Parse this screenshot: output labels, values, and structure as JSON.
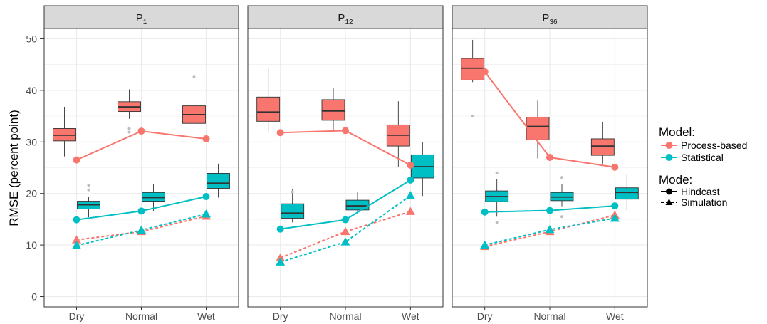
{
  "chart_data": {
    "type": "box+line",
    "ylabel": "RMSE (percent point)",
    "ylim": [
      -2,
      52
    ],
    "yticks": [
      0,
      10,
      20,
      30,
      40,
      50
    ],
    "categories": [
      "Dry",
      "Normal",
      "Wet"
    ],
    "grid": true,
    "colors": {
      "Process-based": "#F8766D",
      "Statistical": "#00BFC4"
    },
    "legend": {
      "placement": "right",
      "model_title": "Model:",
      "model_entries": [
        "Process-based",
        "Statistical"
      ],
      "mode_title": "Mode:",
      "mode_entries": [
        "Hindcast",
        "Simulation"
      ]
    },
    "panels": [
      {
        "label": "P",
        "label_sub": "1",
        "boxes": {
          "Process-based": [
            {
              "whisker_low": 27.2,
              "q1": 30.2,
              "median": 31.3,
              "q3": 32.6,
              "whisker_high": 36.8,
              "outliers": []
            },
            {
              "whisker_low": 34.5,
              "q1": 35.9,
              "median": 36.8,
              "q3": 37.8,
              "whisker_high": 40.2,
              "outliers": [
                32.6,
                31.9
              ]
            },
            {
              "whisker_low": 30.2,
              "q1": 33.6,
              "median": 35.3,
              "q3": 37.0,
              "whisker_high": 38.9,
              "outliers": [
                42.6
              ]
            }
          ],
          "Statistical": [
            {
              "whisker_low": 15.4,
              "q1": 17.0,
              "median": 17.8,
              "q3": 18.5,
              "whisker_high": 19.3,
              "outliers": [
                20.7,
                21.6
              ]
            },
            {
              "whisker_low": 16.5,
              "q1": 18.5,
              "median": 19.2,
              "q3": 20.2,
              "whisker_high": 21.9,
              "outliers": []
            },
            {
              "whisker_low": 19.2,
              "q1": 21.0,
              "median": 22.0,
              "q3": 23.9,
              "whisker_high": 25.8,
              "outliers": []
            }
          ]
        },
        "hindcast": {
          "Process-based": [
            26.5,
            32.1,
            30.6
          ],
          "Statistical": [
            14.9,
            16.6,
            19.4
          ]
        },
        "simulation": {
          "Process-based": [
            11.0,
            12.6,
            15.6
          ],
          "Statistical": [
            9.9,
            12.9,
            16.0
          ]
        }
      },
      {
        "label": "P",
        "label_sub": "12",
        "boxes": {
          "Process-based": [
            {
              "whisker_low": 32.0,
              "q1": 34.0,
              "median": 35.8,
              "q3": 38.7,
              "whisker_high": 44.2,
              "outliers": []
            },
            {
              "whisker_low": 32.2,
              "q1": 34.2,
              "median": 36.0,
              "q3": 38.2,
              "whisker_high": 40.4,
              "outliers": []
            },
            {
              "whisker_low": 25.2,
              "q1": 29.2,
              "median": 31.3,
              "q3": 33.3,
              "whisker_high": 37.9,
              "outliers": []
            }
          ],
          "Statistical": [
            {
              "whisker_low": 14.4,
              "q1": 15.2,
              "median": 16.2,
              "q3": 18.0,
              "whisker_high": 20.8,
              "outliers": [
                20.3
              ]
            },
            {
              "whisker_low": 16.3,
              "q1": 16.8,
              "median": 17.6,
              "q3": 18.7,
              "whisker_high": 20.2,
              "outliers": []
            },
            {
              "whisker_low": 19.5,
              "q1": 23.0,
              "median": 25.2,
              "q3": 27.5,
              "whisker_high": 30.0,
              "outliers": []
            }
          ]
        },
        "hindcast": {
          "Process-based": [
            31.8,
            32.2,
            25.5
          ],
          "Statistical": [
            13.1,
            14.9,
            22.6
          ]
        },
        "simulation": {
          "Process-based": [
            7.5,
            12.6,
            16.5
          ],
          "Statistical": [
            6.7,
            10.6,
            19.6
          ]
        }
      },
      {
        "label": "P",
        "label_sub": "36",
        "boxes": {
          "Process-based": [
            {
              "whisker_low": 41.6,
              "q1": 42.0,
              "median": 44.3,
              "q3": 46.2,
              "whisker_high": 49.8,
              "outliers": [
                35.0
              ]
            },
            {
              "whisker_low": 26.8,
              "q1": 30.4,
              "median": 33.0,
              "q3": 34.8,
              "whisker_high": 38.0,
              "outliers": []
            },
            {
              "whisker_low": 25.8,
              "q1": 27.4,
              "median": 29.2,
              "q3": 30.6,
              "whisker_high": 33.8,
              "outliers": []
            }
          ],
          "Statistical": [
            {
              "whisker_low": 15.5,
              "q1": 18.4,
              "median": 19.4,
              "q3": 20.5,
              "whisker_high": 22.8,
              "outliers": [
                24.0,
                14.4
              ]
            },
            {
              "whisker_low": 17.5,
              "q1": 18.6,
              "median": 19.3,
              "q3": 20.2,
              "whisker_high": 21.9,
              "outliers": [
                23.1,
                15.5
              ]
            },
            {
              "whisker_low": 16.7,
              "q1": 18.9,
              "median": 20.2,
              "q3": 21.1,
              "whisker_high": 23.6,
              "outliers": []
            }
          ]
        },
        "hindcast": {
          "Process-based": [
            43.6,
            27.0,
            25.1
          ],
          "Statistical": [
            16.4,
            16.7,
            17.6
          ]
        },
        "simulation": {
          "Process-based": [
            9.7,
            12.6,
            15.8
          ],
          "Statistical": [
            10.0,
            13.0,
            15.2
          ]
        }
      }
    ]
  }
}
